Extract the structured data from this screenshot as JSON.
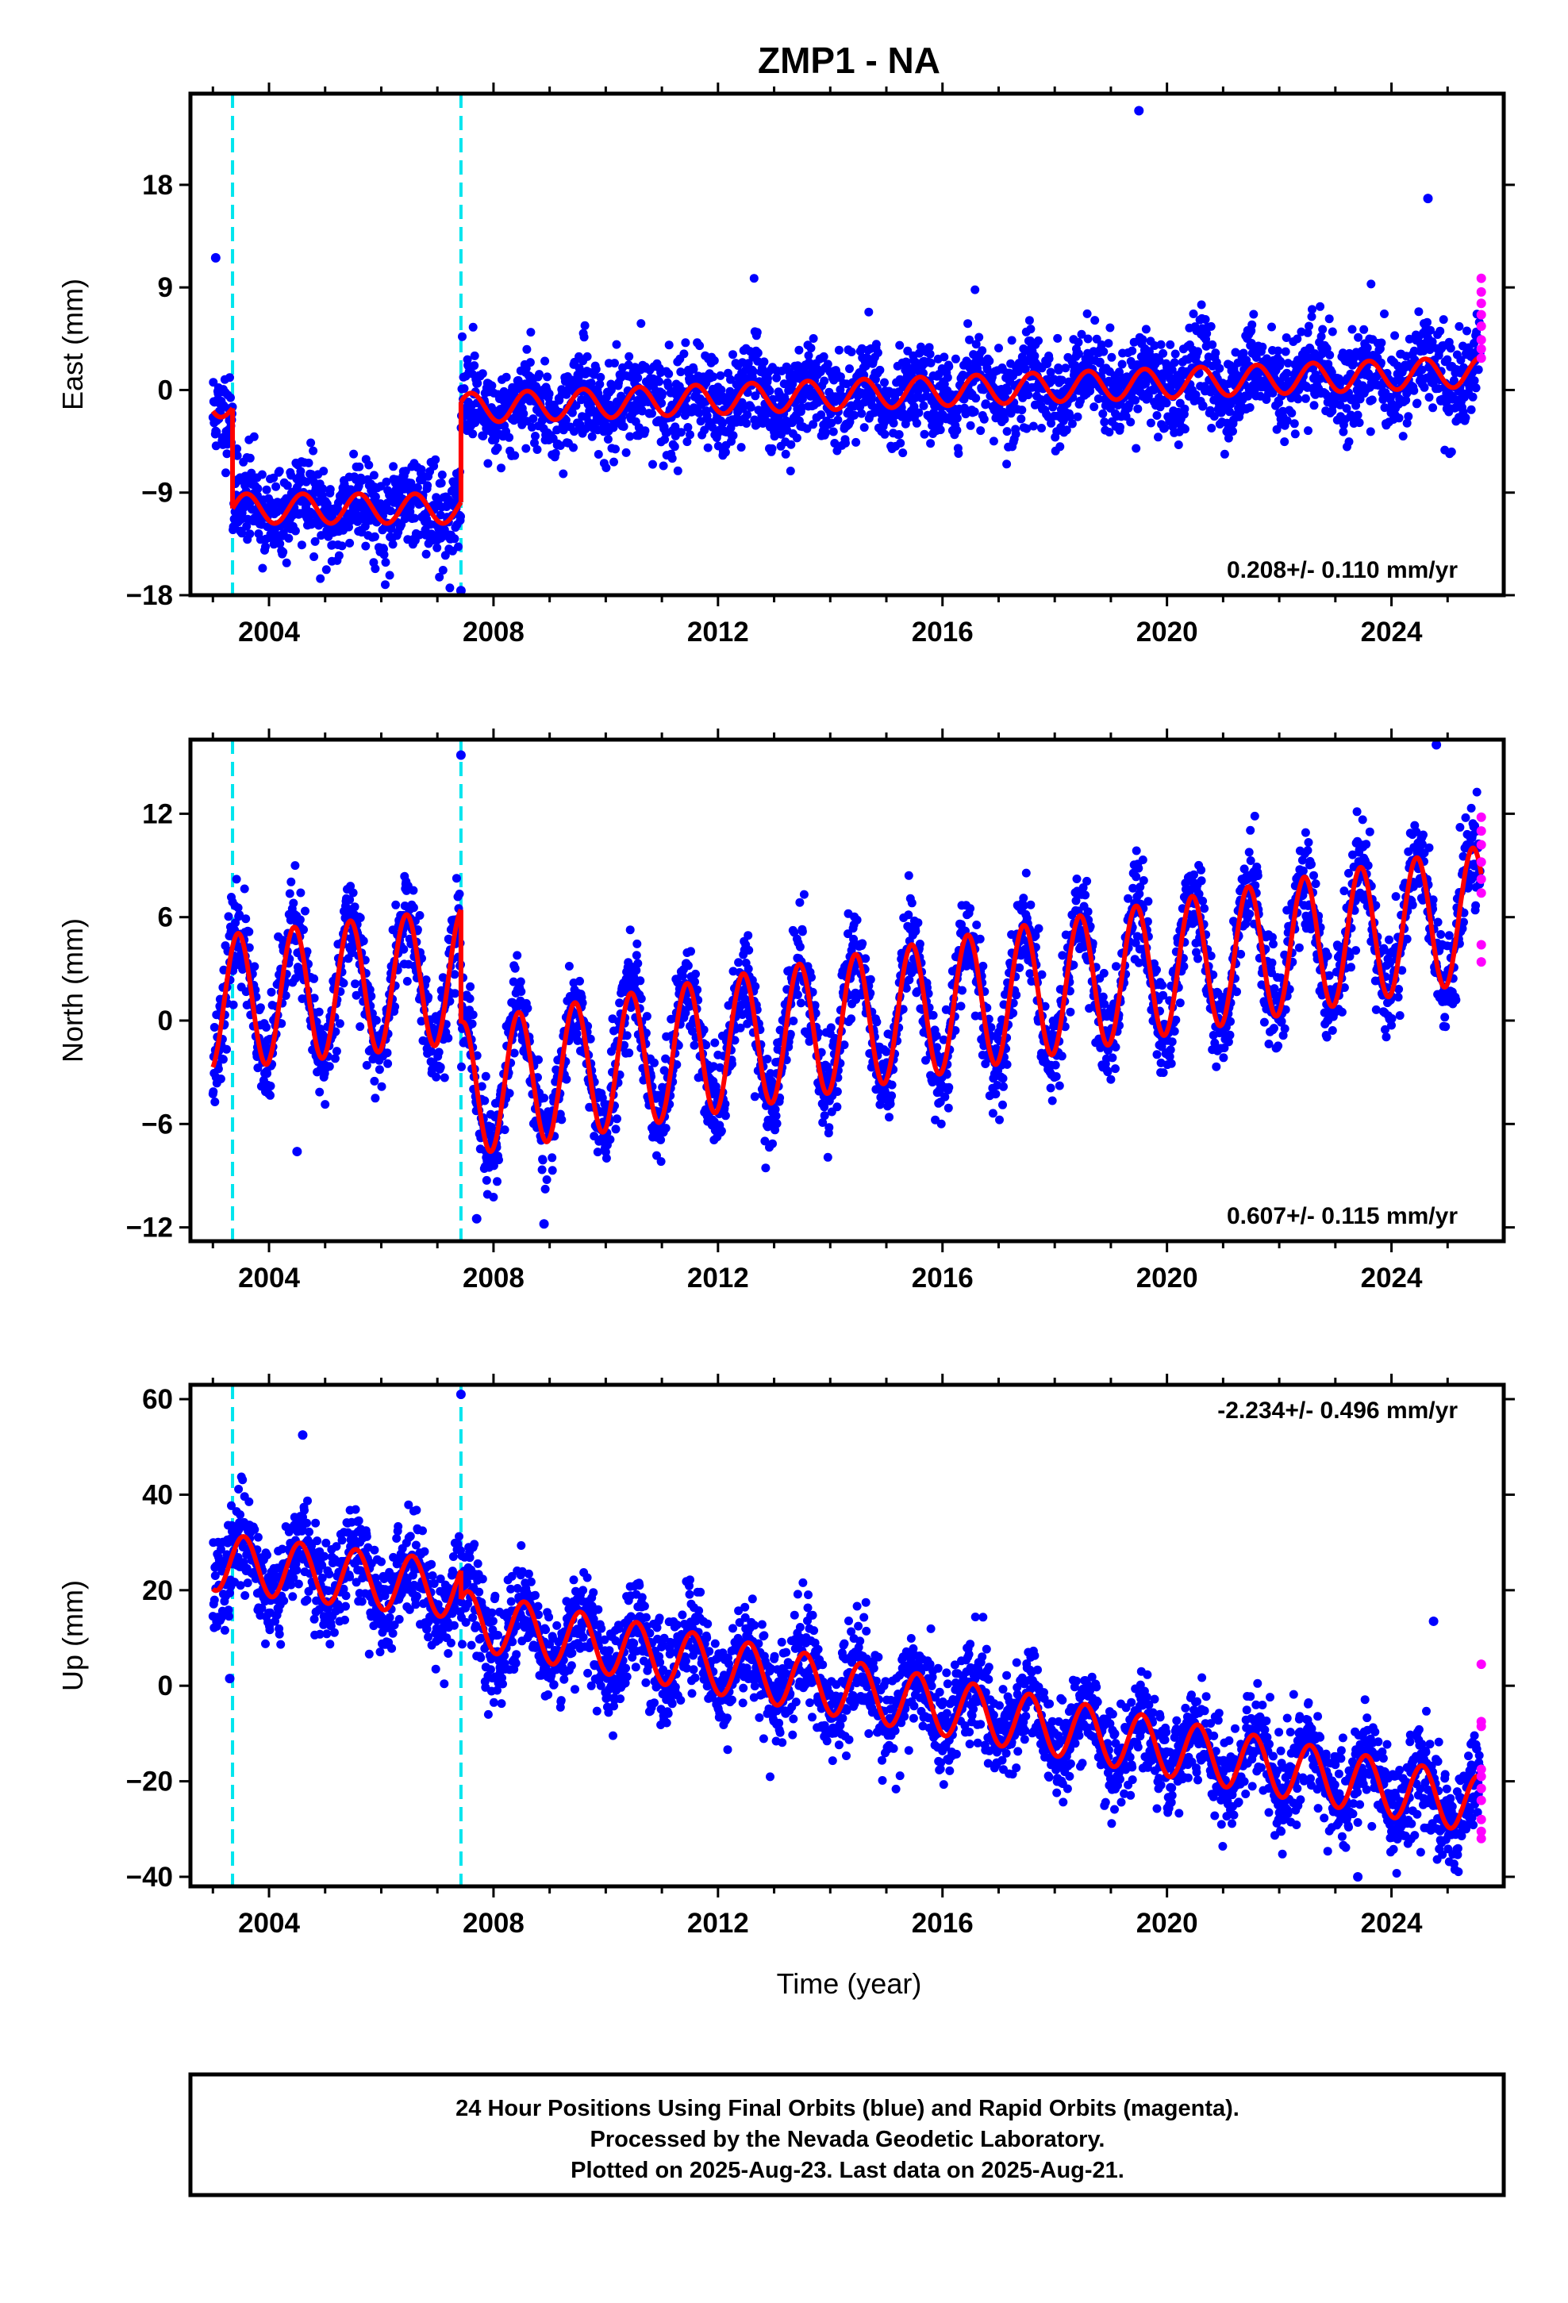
{
  "title": "ZMP1 - NA",
  "xlabel": "Time (year)",
  "footer": {
    "line1": "24 Hour Positions Using Final Orbits (blue) and Rapid Orbits (magenta).",
    "line2": "Processed by the Nevada Geodetic Laboratory.",
    "line3": "Plotted on 2025-Aug-23. Last data on 2025-Aug-21."
  },
  "colors": {
    "final_orbits": "#0000ff",
    "rapid_orbits": "#ff00ff",
    "model": "#ff0000",
    "steps": "#00e5ee"
  },
  "chart_data": [
    {
      "type": "scatter",
      "panel": "east",
      "ylabel": "East (mm)",
      "rate": "0.208+/- 0.110 mm/yr",
      "xlim": [
        2002.6,
        2026.0
      ],
      "ylim": [
        -18,
        26
      ],
      "yticks": [
        -18,
        -9,
        0,
        9,
        18
      ],
      "xticks": [
        2004,
        2008,
        2012,
        2016,
        2020,
        2024
      ],
      "steps": [
        2003.35,
        2007.42
      ],
      "model": {
        "segments": [
          {
            "x0": 2003.0,
            "x1": 2003.35,
            "base0": -0.8,
            "base1": -1.6
          },
          {
            "x0": 2003.35,
            "x1": 2007.42,
            "base0": -10.4,
            "base1": -10.4
          },
          {
            "x0": 2007.42,
            "x1": 2025.6,
            "base0": -1.6,
            "base1": 1.6
          }
        ],
        "annual_amplitude": 1.3,
        "peak_phase": 0.6
      },
      "scatter": {
        "noise": 2.0,
        "seed": 11
      },
      "outliers": [
        [
          2003.05,
          11.6
        ],
        [
          2019.5,
          24.5
        ],
        [
          2024.65,
          16.8
        ],
        [
          2007.42,
          -17.6
        ],
        [
          2003.5,
          -12.4
        ]
      ],
      "rapid": {
        "x": 2025.6,
        "values": [
          9.8,
          8.6,
          7.6,
          6.6,
          5.6,
          4.4,
          3.6,
          2.8
        ]
      }
    },
    {
      "type": "scatter",
      "panel": "north",
      "ylabel": "North (mm)",
      "rate": "0.607+/- 0.115 mm/yr",
      "xlim": [
        2002.6,
        2026.0
      ],
      "ylim": [
        -12.8,
        16.3
      ],
      "yticks": [
        -12,
        -6,
        0,
        6,
        12
      ],
      "xticks": [
        2004,
        2008,
        2012,
        2016,
        2020,
        2024
      ],
      "steps": [
        2003.35,
        2007.42
      ],
      "model": {
        "segments": [
          {
            "x0": 2003.0,
            "x1": 2007.42,
            "base0": 1.0,
            "base1": 2.6
          },
          {
            "x0": 2007.42,
            "x1": 2025.6,
            "base0": -4.0,
            "base1": 6.2
          }
        ],
        "annual_amplitude": 3.9,
        "peak_phase": 0.45
      },
      "scatter": {
        "noise": 1.4,
        "seed": 23
      },
      "outliers": [
        [
          2007.42,
          15.4
        ],
        [
          2024.8,
          16.0
        ],
        [
          2004.5,
          -7.6
        ],
        [
          2008.9,
          -11.8
        ],
        [
          2007.7,
          -11.5
        ]
      ],
      "rapid": {
        "x": 2025.6,
        "values": [
          11.8,
          11.0,
          10.2,
          9.2,
          8.2,
          7.4,
          4.4,
          3.4
        ]
      }
    },
    {
      "type": "scatter",
      "panel": "up",
      "ylabel": "Up (mm)",
      "rate": "-2.234+/- 0.496 mm/yr",
      "xlim": [
        2002.6,
        2026.0
      ],
      "ylim": [
        -42,
        63
      ],
      "yticks": [
        -40,
        -20,
        0,
        20,
        40,
        60
      ],
      "xticks": [
        2004,
        2008,
        2012,
        2016,
        2020,
        2024
      ],
      "steps": [
        2003.35,
        2007.42
      ],
      "model": {
        "segments": [
          {
            "x0": 2003.0,
            "x1": 2007.42,
            "base0": 26.0,
            "base1": 20.0
          },
          {
            "x0": 2007.42,
            "x1": 2025.6,
            "base0": 14.0,
            "base1": -25.0
          }
        ],
        "annual_amplitude": 6.0,
        "peak_phase": 0.55
      },
      "scatter": {
        "noise": 5.2,
        "seed": 37
      },
      "outliers": [
        [
          2007.42,
          61.0
        ],
        [
          2004.6,
          52.5
        ],
        [
          2024.75,
          13.5
        ],
        [
          2003.3,
          1.5
        ],
        [
          2023.4,
          -40.0
        ]
      ],
      "rapid": {
        "x": 2025.6,
        "values": [
          4.5,
          -7.5,
          -8.5,
          -17.5,
          -19.0,
          -21.5,
          -24.0,
          -28.0,
          -30.5,
          -32.0
        ]
      }
    }
  ]
}
